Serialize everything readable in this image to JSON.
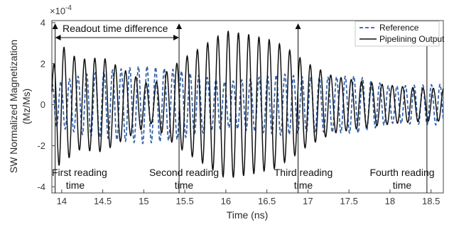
{
  "chart_data": {
    "type": "line",
    "title": "",
    "xlabel": "Time (ns)",
    "ylabel_line1": "SW Normalized Magnetization",
    "ylabel_line2": "(Mz/Ms)",
    "y_multiplier": "×10",
    "y_multiplier_exp": "-4",
    "xlim": [
      13.88,
      18.65
    ],
    "ylim": [
      -4.3,
      4.1
    ],
    "x_ticks": [
      "14",
      "14.5",
      "15",
      "15.5",
      "16",
      "16.5",
      "17",
      "17.5",
      "18",
      "18.5"
    ],
    "y_ticks": [
      "4",
      "2",
      "0",
      "-2",
      "-4"
    ],
    "grid": false,
    "legend_position": "top-right",
    "series": [
      {
        "name": "Reference",
        "color": "#2f5fa8",
        "style": "dashed",
        "envelope": [
          [
            13.88,
            1.0
          ],
          [
            14.3,
            1.5
          ],
          [
            15.0,
            1.9
          ],
          [
            15.4,
            1.7
          ],
          [
            16.0,
            1.1
          ],
          [
            16.7,
            1.5
          ],
          [
            17.0,
            1.3
          ],
          [
            17.6,
            1.4
          ],
          [
            18.0,
            0.9
          ],
          [
            18.65,
            1.0
          ]
        ],
        "period_ns": 0.105,
        "phase": 1.3
      },
      {
        "name": "Pipelining Output",
        "color": "#111111",
        "style": "solid",
        "envelope": [
          [
            13.88,
            1.6
          ],
          [
            13.97,
            3.0
          ],
          [
            14.2,
            2.2
          ],
          [
            14.5,
            2.3
          ],
          [
            14.8,
            1.6
          ],
          [
            15.1,
            0.9
          ],
          [
            15.3,
            1.7
          ],
          [
            15.5,
            2.3
          ],
          [
            15.7,
            2.8
          ],
          [
            16.0,
            3.6
          ],
          [
            16.3,
            3.4
          ],
          [
            16.6,
            3.1
          ],
          [
            16.8,
            2.6
          ],
          [
            17.0,
            2.0
          ],
          [
            17.3,
            1.4
          ],
          [
            17.7,
            1.1
          ],
          [
            18.1,
            0.9
          ],
          [
            18.4,
            0.8
          ],
          [
            18.65,
            0.8
          ]
        ],
        "period_ns": 0.125,
        "phase": 0.4
      }
    ],
    "markers": [
      {
        "x": 13.92,
        "label_line1": "First reading",
        "label_line2": "time"
      },
      {
        "x": 15.43,
        "label_line1": "Second reading",
        "label_line2": "time"
      },
      {
        "x": 16.88,
        "label_line1": "Third reading",
        "label_line2": "time"
      },
      {
        "x": 18.45,
        "label_line1": "Fourth reading",
        "label_line2": "time"
      }
    ],
    "annotation": {
      "text": "Readout time difference",
      "x_from": 13.92,
      "x_to": 15.43
    }
  }
}
